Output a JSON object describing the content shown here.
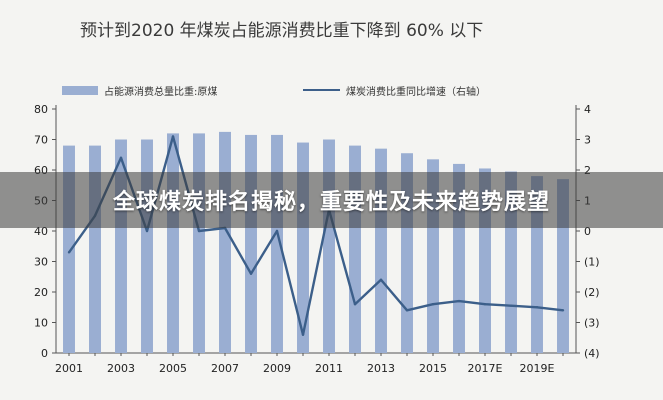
{
  "overlay": {
    "banner_text": "全球煤炭排名揭秘，重要性及未来趋势展望"
  },
  "colors": {
    "bar": "#9aaed2",
    "line": "#3c5f8a"
  },
  "chart_data": {
    "type": "bar",
    "title": "预计到2020 年煤炭占能源消费比重下降到 60% 以下",
    "categories": [
      "2001",
      "2002",
      "2003",
      "2004",
      "2005",
      "2006",
      "2007",
      "2008",
      "2009",
      "2010",
      "2011",
      "2012",
      "2013",
      "2014",
      "2015",
      "2016",
      "2017E",
      "2018E",
      "2019E",
      "2020E"
    ],
    "x_tick_labels": [
      "2001",
      "2003",
      "2005",
      "2007",
      "2009",
      "2011",
      "2013",
      "2015",
      "2017E",
      "2019E"
    ],
    "series": [
      {
        "name": "占能源消费总量比重:原煤",
        "type": "bar",
        "axis": "left",
        "values": [
          68,
          68,
          70,
          70,
          72,
          72,
          72.5,
          71.5,
          71.5,
          69,
          70,
          68,
          67,
          65.5,
          63.5,
          62,
          60.5,
          59.5,
          58,
          57
        ]
      },
      {
        "name": "煤炭消费比重同比增速（右轴）",
        "type": "line",
        "axis": "right",
        "values": [
          -0.7,
          0.5,
          2.4,
          0.0,
          3.1,
          0.0,
          0.1,
          -1.4,
          0.0,
          -3.4,
          0.7,
          -2.4,
          -1.6,
          -2.6,
          -2.4,
          -2.3,
          -2.4,
          -2.45,
          -2.5,
          -2.6
        ]
      }
    ],
    "ylim_left": [
      0,
      80
    ],
    "yticks_left": [
      "0",
      "10",
      "20",
      "30",
      "40",
      "50",
      "60",
      "70",
      "80"
    ],
    "ylim_right": [
      -4,
      4
    ],
    "yticks_right": [
      "(4)",
      "(3)",
      "(2)",
      "(1)",
      "0",
      "1",
      "2",
      "3",
      "4"
    ],
    "legend_position": "top",
    "grid": false
  }
}
